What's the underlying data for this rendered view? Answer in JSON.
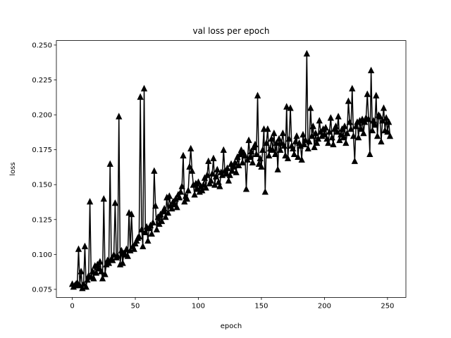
{
  "chart_data": {
    "type": "line",
    "title": "val loss per epoch",
    "xlabel": "epoch",
    "ylabel": "loss",
    "color": "#000000",
    "marker": "triangle-up",
    "x": [
      0,
      1,
      2,
      3,
      4,
      5,
      6,
      7,
      8,
      9,
      10,
      11,
      12,
      13,
      14,
      15,
      16,
      17,
      18,
      19,
      20,
      21,
      22,
      23,
      24,
      25,
      26,
      27,
      28,
      29,
      30,
      31,
      32,
      33,
      34,
      35,
      36,
      37,
      38,
      39,
      40,
      41,
      42,
      43,
      44,
      45,
      46,
      47,
      48,
      49,
      50,
      51,
      52,
      53,
      54,
      55,
      56,
      57,
      58,
      59,
      60,
      61,
      62,
      63,
      64,
      65,
      66,
      67,
      68,
      69,
      70,
      71,
      72,
      73,
      74,
      75,
      76,
      77,
      78,
      79,
      80,
      81,
      82,
      83,
      84,
      85,
      86,
      87,
      88,
      89,
      90,
      91,
      92,
      93,
      94,
      95,
      96,
      97,
      98,
      99,
      100,
      101,
      102,
      103,
      104,
      105,
      106,
      107,
      108,
      109,
      110,
      111,
      112,
      113,
      114,
      115,
      116,
      117,
      118,
      119,
      120,
      121,
      122,
      123,
      124,
      125,
      126,
      127,
      128,
      129,
      130,
      131,
      132,
      133,
      134,
      135,
      136,
      137,
      138,
      139,
      140,
      141,
      142,
      143,
      144,
      145,
      146,
      147,
      148,
      149,
      150,
      151,
      152,
      153,
      154,
      155,
      156,
      157,
      158,
      159,
      160,
      161,
      162,
      163,
      164,
      165,
      166,
      167,
      168,
      169,
      170,
      171,
      172,
      173,
      174,
      175,
      176,
      177,
      178,
      179,
      180,
      181,
      182,
      183,
      184,
      185,
      186,
      187,
      188,
      189,
      190,
      191,
      192,
      193,
      194,
      195,
      196,
      197,
      198,
      199,
      200,
      201,
      202,
      203,
      204,
      205,
      206,
      207,
      208,
      209,
      210,
      211,
      212,
      213,
      214,
      215,
      216,
      217,
      218,
      219,
      220,
      221,
      222,
      223,
      224,
      225,
      226,
      227,
      228,
      229,
      230,
      231,
      232,
      233,
      234,
      235,
      236,
      237,
      238,
      239,
      240,
      241,
      242,
      243,
      244,
      245,
      246,
      247,
      248,
      249,
      250,
      251,
      252
    ],
    "values": [
      0.079,
      0.077,
      0.078,
      0.079,
      0.08,
      0.104,
      0.078,
      0.088,
      0.076,
      0.079,
      0.106,
      0.077,
      0.082,
      0.085,
      0.138,
      0.084,
      0.088,
      0.083,
      0.092,
      0.087,
      0.093,
      0.09,
      0.095,
      0.088,
      0.083,
      0.14,
      0.086,
      0.093,
      0.096,
      0.094,
      0.165,
      0.097,
      0.096,
      0.1,
      0.137,
      0.098,
      0.099,
      0.199,
      0.093,
      0.103,
      0.094,
      0.101,
      0.1,
      0.104,
      0.099,
      0.13,
      0.103,
      0.129,
      0.106,
      0.104,
      0.108,
      0.11,
      0.112,
      0.113,
      0.213,
      0.118,
      0.106,
      0.219,
      0.116,
      0.12,
      0.11,
      0.119,
      0.121,
      0.115,
      0.123,
      0.16,
      0.135,
      0.118,
      0.127,
      0.122,
      0.129,
      0.124,
      0.131,
      0.133,
      0.127,
      0.141,
      0.13,
      0.142,
      0.135,
      0.133,
      0.138,
      0.136,
      0.14,
      0.134,
      0.143,
      0.141,
      0.145,
      0.149,
      0.171,
      0.138,
      0.142,
      0.14,
      0.146,
      0.163,
      0.176,
      0.16,
      0.15,
      0.143,
      0.151,
      0.147,
      0.152,
      0.145,
      0.149,
      0.146,
      0.15,
      0.155,
      0.148,
      0.157,
      0.167,
      0.151,
      0.153,
      0.158,
      0.169,
      0.15,
      0.156,
      0.161,
      0.152,
      0.149,
      0.159,
      0.157,
      0.175,
      0.16,
      0.158,
      0.162,
      0.153,
      0.157,
      0.165,
      0.16,
      0.163,
      0.166,
      0.159,
      0.17,
      0.164,
      0.172,
      0.175,
      0.166,
      0.173,
      0.171,
      0.147,
      0.168,
      0.182,
      0.17,
      0.174,
      0.166,
      0.177,
      0.179,
      0.172,
      0.214,
      0.165,
      0.169,
      0.163,
      0.175,
      0.19,
      0.145,
      0.18,
      0.19,
      0.171,
      0.176,
      0.183,
      0.175,
      0.187,
      0.172,
      0.18,
      0.161,
      0.183,
      0.175,
      0.18,
      0.187,
      0.178,
      0.171,
      0.206,
      0.169,
      0.183,
      0.205,
      0.178,
      0.176,
      0.172,
      0.181,
      0.185,
      0.17,
      0.18,
      0.178,
      0.168,
      0.186,
      0.179,
      0.182,
      0.244,
      0.176,
      0.181,
      0.205,
      0.185,
      0.192,
      0.177,
      0.187,
      0.18,
      0.183,
      0.196,
      0.188,
      0.185,
      0.19,
      0.186,
      0.191,
      0.183,
      0.18,
      0.188,
      0.198,
      0.184,
      0.179,
      0.19,
      0.192,
      0.188,
      0.199,
      0.182,
      0.186,
      0.19,
      0.184,
      0.192,
      0.18,
      0.187,
      0.21,
      0.195,
      0.19,
      0.219,
      0.185,
      0.167,
      0.192,
      0.195,
      0.184,
      0.196,
      0.19,
      0.197,
      0.187,
      0.195,
      0.198,
      0.215,
      0.197,
      0.172,
      0.232,
      0.189,
      0.196,
      0.193,
      0.214,
      0.185,
      0.2,
      0.199,
      0.181,
      0.196,
      0.205,
      0.189,
      0.198,
      0.188,
      0.195,
      0.185
    ],
    "xlim": [
      -12.6,
      264.6
    ],
    "ylim": [
      0.0692,
      0.2532
    ],
    "xticks": [
      0,
      50,
      100,
      150,
      200,
      250
    ],
    "yticks": [
      {
        "value": 0.075,
        "label": "0.075"
      },
      {
        "value": 0.1,
        "label": "0.100"
      },
      0.125,
      {
        "value": 0.15,
        "label": "0.150"
      },
      0.175,
      {
        "value": 0.2,
        "label": "0.200"
      },
      0.225,
      {
        "value": 0.25,
        "label": "0.250"
      }
    ]
  }
}
